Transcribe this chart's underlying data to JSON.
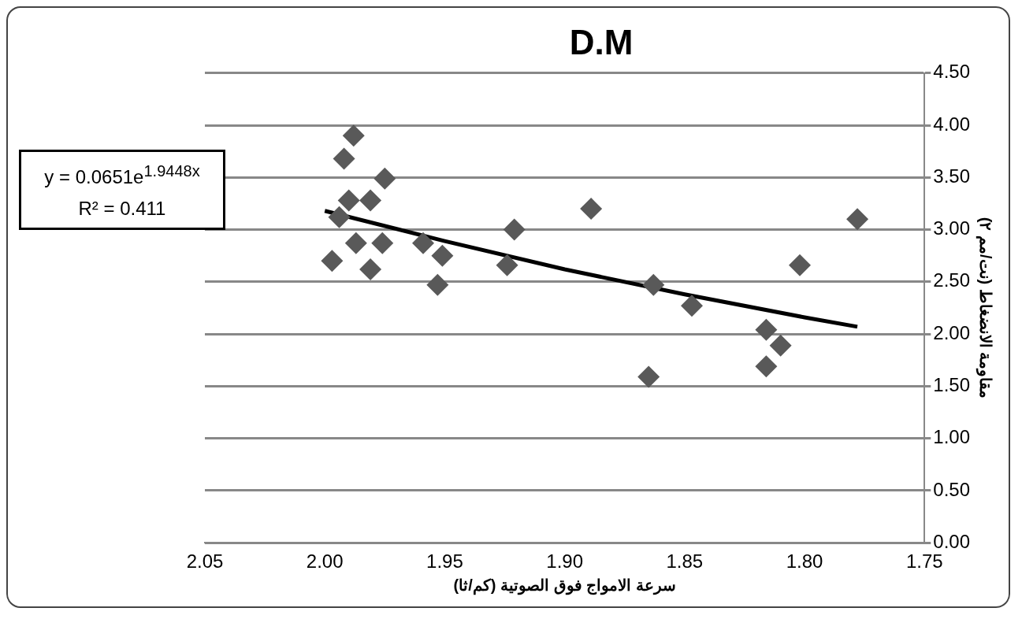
{
  "chart_data": {
    "type": "scatter",
    "title": "D.M",
    "xlabel": "سرعة الامواج فوق الصوتية (كم/ثا)",
    "ylabel": "مقاومة الانضغاط (نت/مم ٢)",
    "annotations": [
      "y = 0.0651e$^{1.9448x}$",
      "R² = 0.411"
    ],
    "xlim": [
      2.05,
      1.75
    ],
    "xticks": [
      {
        "value": 2.05,
        "label": "2.05"
      },
      {
        "value": 2.0,
        "label": "2.00"
      },
      {
        "value": 1.95,
        "label": "1.95"
      },
      {
        "value": 1.9,
        "label": "1.90"
      },
      {
        "value": 1.85,
        "label": "1.85"
      },
      {
        "value": 1.8,
        "label": "1.80"
      },
      {
        "value": 1.75,
        "label": "1.75"
      }
    ],
    "ylim": [
      0,
      4.5
    ],
    "yticks": [
      {
        "value": 0,
        "label": "0.00"
      },
      {
        "value": 0.5,
        "label": "0.50"
      },
      {
        "value": 1,
        "label": "1.00"
      },
      {
        "value": 1.5,
        "label": "1.50"
      },
      {
        "value": 2,
        "label": "2.00"
      },
      {
        "value": 2.5,
        "label": "2.50"
      },
      {
        "value": 3,
        "label": "3.00"
      },
      {
        "value": 3.5,
        "label": "3.50"
      },
      {
        "value": 4,
        "label": "4.00"
      },
      {
        "value": 4.5,
        "label": "4.50"
      }
    ],
    "grid": "y",
    "legend": false,
    "marker": "diamond",
    "series": [
      {
        "color": "#595959",
        "x": [
          1.988,
          1.992,
          1.975,
          1.99,
          1.981,
          1.997,
          1.981,
          1.987,
          1.976,
          1.959,
          1.951,
          1.953,
          1.994,
          1.921,
          1.924,
          1.889,
          1.863,
          1.847,
          1.865,
          1.816,
          1.81,
          1.816,
          1.802,
          1.778
        ],
        "values": [
          3.9,
          3.68,
          3.49,
          3.28,
          3.28,
          2.7,
          2.62,
          2.87,
          2.87,
          2.87,
          2.75,
          2.47,
          3.12,
          3.0,
          2.66,
          3.2,
          2.47,
          2.27,
          1.59,
          2.04,
          1.89,
          1.69,
          2.66,
          3.1
        ]
      },
      {
        "type": "line",
        "color": "#000000",
        "marker": "none",
        "x": [
          2.0,
          1.95,
          1.9,
          1.85,
          1.8,
          1.778
        ],
        "values": [
          3.18,
          2.89,
          2.62,
          2.38,
          2.16,
          2.07
        ]
      }
    ]
  }
}
